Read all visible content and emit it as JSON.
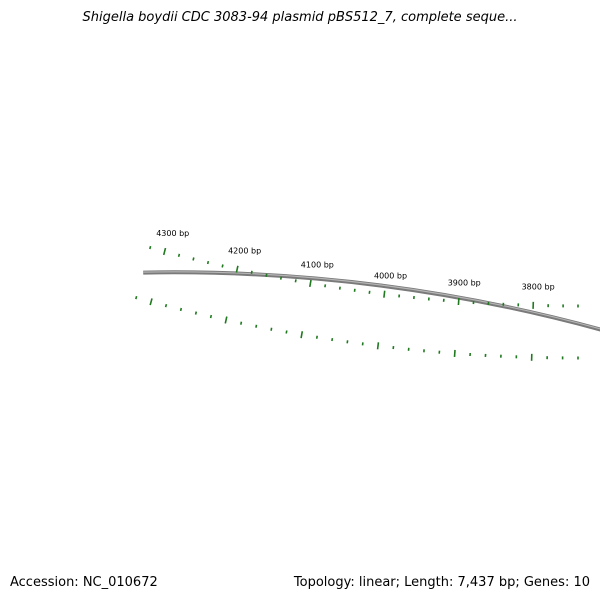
{
  "map": {
    "title": "Shigella boydii CDC 3083-94 plasmid pBS512_7, complete seque...",
    "accession_label": "Accession: NC_010672",
    "summary_label": "Topology: linear; Length: 7,437 bp; Genes: 10",
    "ticks": [
      {
        "bp": 4300,
        "label": "4300 bp"
      },
      {
        "bp": 4200,
        "label": "4200 bp"
      },
      {
        "bp": 4100,
        "label": "4100 bp"
      },
      {
        "bp": 4000,
        "label": "4000 bp"
      },
      {
        "bp": 3900,
        "label": "3900 bp"
      },
      {
        "bp": 3800,
        "label": "3800 bp"
      }
    ],
    "visible_range_bp": [
      3740,
      4320
    ],
    "colors": {
      "backbone": "#7a7a7a",
      "backbone_highlight": "#b5b5b5",
      "tick": "#1f7a1f",
      "text": "#000000"
    }
  }
}
